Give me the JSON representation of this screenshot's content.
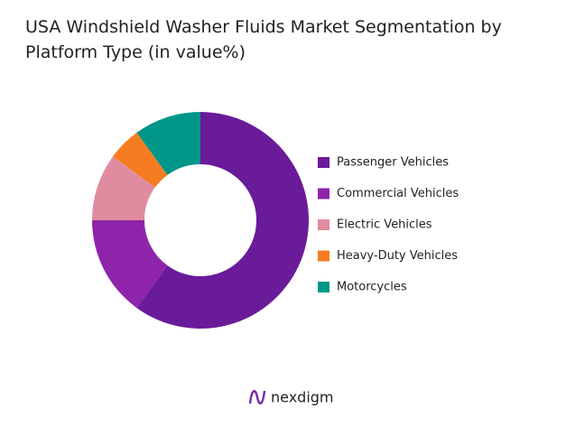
{
  "chart_data": {
    "type": "donut",
    "title": "USA Windshield Washer Fluids Market Segmentation by Platform Type (in value%)",
    "categories": [
      "Passenger Vehicles",
      "Commercial Vehicles",
      "Electric Vehicles",
      "Heavy-Duty Vehicles",
      "Motorcycles"
    ],
    "values": [
      60,
      15,
      10,
      5,
      10
    ],
    "colors": [
      "#6a1b9a",
      "#8e24aa",
      "#e08ca0",
      "#f57c20",
      "#00968a"
    ],
    "legend": "right"
  },
  "brand": "nexdigm"
}
